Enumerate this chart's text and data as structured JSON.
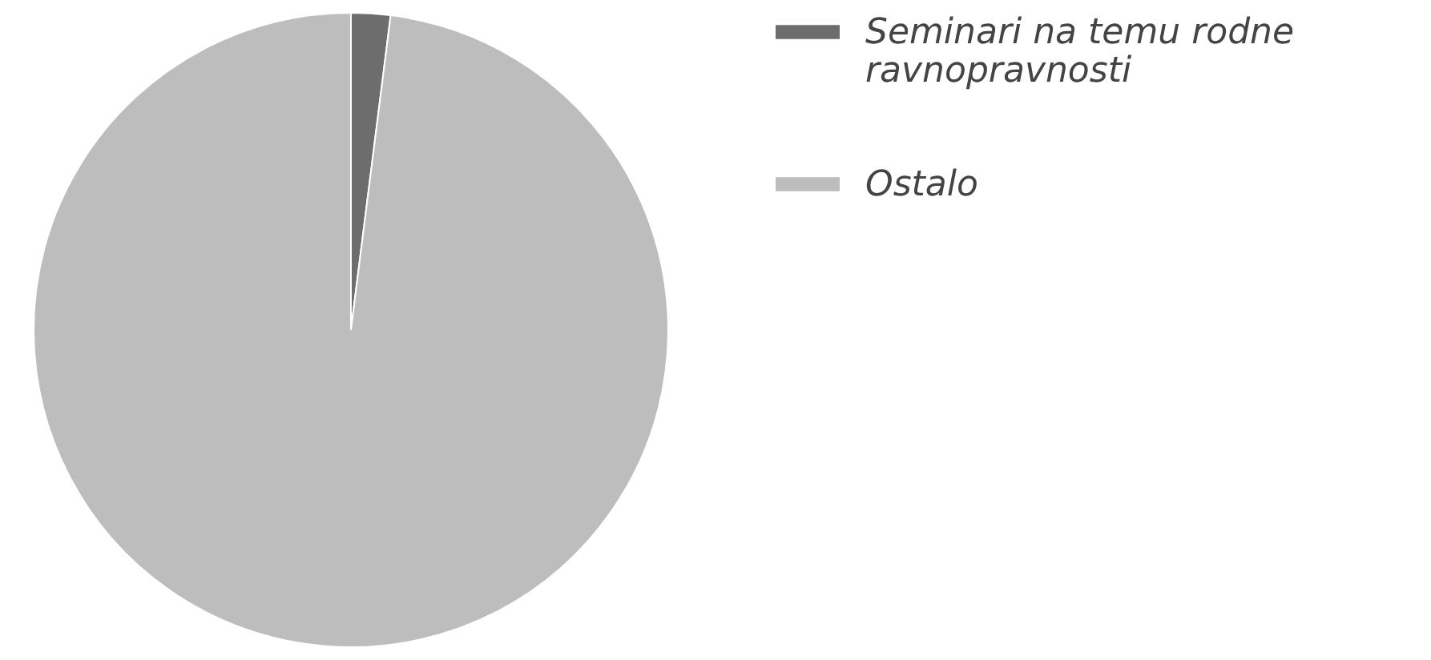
{
  "chart_data": {
    "type": "pie",
    "categories": [
      "Seminari na temu rodne ravnopravnosti",
      "Ostalo"
    ],
    "values": [
      2,
      98
    ],
    "colors": [
      "#6d6d6d",
      "#bdbdbd"
    ],
    "legend": "right"
  }
}
